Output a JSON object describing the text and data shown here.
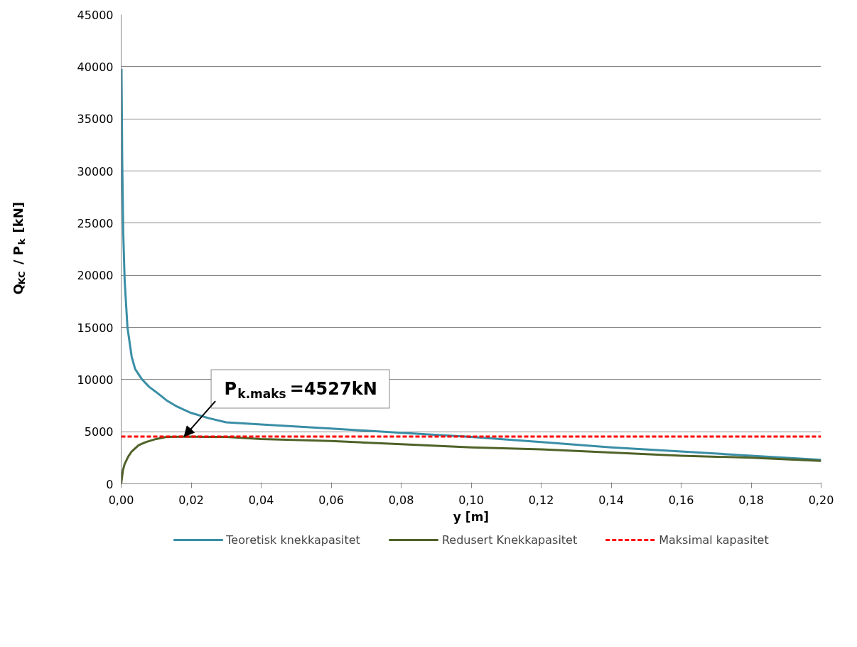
{
  "chart_data": {
    "type": "line",
    "xlabel": "y [m]",
    "ylabel": "Q$_{KC}$ / P$_{k}$ [kN]",
    "xlim": [
      0,
      0.2
    ],
    "ylim": [
      0,
      45000
    ],
    "xticks": [
      {
        "value": 0,
        "label": "0,00"
      },
      {
        "value": 0.02,
        "label": "0,02"
      },
      {
        "value": 0.04,
        "label": "0,04"
      },
      {
        "value": 0.06,
        "label": "0,06"
      },
      {
        "value": 0.08,
        "label": "0,08"
      },
      {
        "value": 0.1,
        "label": "0,10"
      },
      {
        "value": 0.12,
        "label": "0,12"
      },
      {
        "value": 0.14,
        "label": "0,14"
      },
      {
        "value": 0.16,
        "label": "0,16"
      },
      {
        "value": 0.18,
        "label": "0,18"
      },
      {
        "value": 0.2,
        "label": "0,20"
      }
    ],
    "yticks": [
      0,
      5000,
      10000,
      15000,
      20000,
      25000,
      30000,
      35000,
      40000,
      45000
    ],
    "grid": "y",
    "legend": "bottom",
    "marker": "none",
    "series": [
      {
        "name": "Teoretisk knekkapasitet",
        "color": "#3a8ea6",
        "line_style": "solid",
        "x": [
          0.0001,
          0.0003,
          0.0006,
          0.001,
          0.0018,
          0.003,
          0.004,
          0.006,
          0.008,
          0.01,
          0.013,
          0.016,
          0.02,
          0.025,
          0.03,
          0.04,
          0.06,
          0.08,
          0.1,
          0.12,
          0.14,
          0.16,
          0.18,
          0.2
        ],
        "values": [
          39800,
          31000,
          24000,
          19500,
          15000,
          12200,
          11000,
          10000,
          9300,
          8800,
          8000,
          7400,
          6800,
          6300,
          5900,
          5700,
          5300,
          4900,
          4500,
          4000,
          3500,
          3100,
          2700,
          2300
        ]
      },
      {
        "name": "Redusert Knekkapasitet",
        "color": "#4f6228",
        "line_style": "solid",
        "x": [
          0,
          0.0005,
          0.001,
          0.002,
          0.003,
          0.005,
          0.007,
          0.01,
          0.013,
          0.018,
          0.024,
          0.03,
          0.04,
          0.06,
          0.08,
          0.1,
          0.12,
          0.14,
          0.16,
          0.18,
          0.2
        ],
        "values": [
          0,
          1300,
          1900,
          2600,
          3100,
          3700,
          4000,
          4300,
          4500,
          4527,
          4500,
          4500,
          4300,
          4100,
          3800,
          3500,
          3300,
          3000,
          2700,
          2500,
          2200
        ]
      },
      {
        "name": "Maksimal kapasitet",
        "color": "#ff0000",
        "line_style": "dashed",
        "x": [
          0,
          0.2
        ],
        "values": [
          4527,
          4527
        ]
      }
    ],
    "annotations": [
      {
        "text": "P$_{k.maks}$=4527kN",
        "x": 0.018,
        "y": 4527
      }
    ]
  }
}
